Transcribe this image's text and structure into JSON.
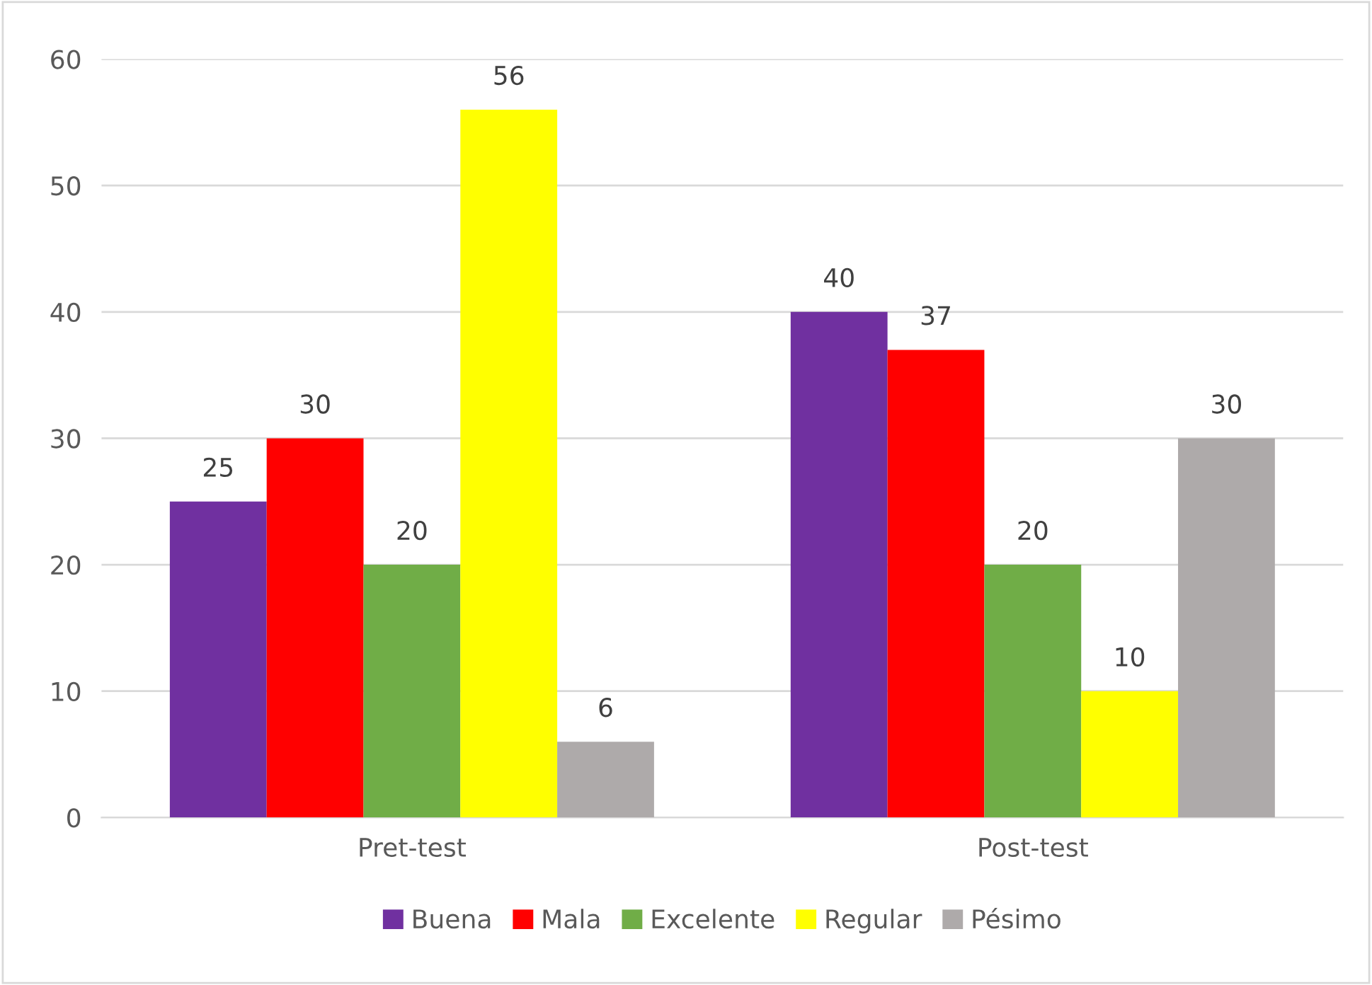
{
  "chart_data": {
    "type": "bar",
    "categories": [
      "Pret-test",
      "Post-test"
    ],
    "series": [
      {
        "name": "Buena",
        "color": "#7030a0",
        "values": [
          25,
          40
        ]
      },
      {
        "name": "Mala",
        "color": "#ff0000",
        "values": [
          30,
          37
        ]
      },
      {
        "name": "Excelente",
        "color": "#70ad47",
        "values": [
          20,
          20
        ]
      },
      {
        "name": "Regular",
        "color": "#ffff00",
        "values": [
          56,
          10
        ]
      },
      {
        "name": "Pésimo",
        "color": "#aeaaaa",
        "values": [
          6,
          30
        ]
      }
    ],
    "ylim": [
      0,
      60
    ],
    "yticks": [
      0,
      10,
      20,
      30,
      40,
      50,
      60
    ],
    "grid": "y",
    "legend": "bottom",
    "data_labels": true
  }
}
